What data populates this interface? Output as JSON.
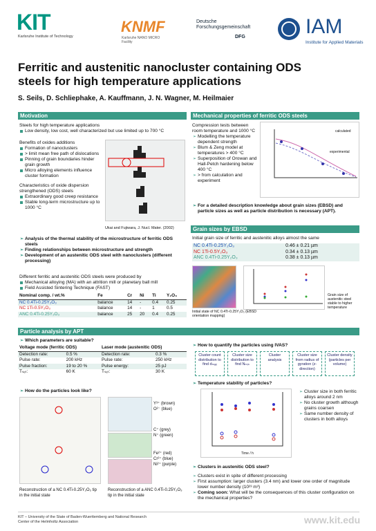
{
  "header": {
    "kit": "KIT",
    "kit_sub": "Karlsruhe Institute of Technology",
    "knmf": "KNMF",
    "knmf_sub": "Karlsruhe NANO MICRO Facility",
    "dfg": "Deutsche Forschungsgemeinschaft",
    "dfg_abbr": "DFG",
    "iam": "IAM",
    "iam_sub": "Institute for Applied Materials"
  },
  "title": "Ferritic and austenitic nanocluster containing ODS steels for high temperature applications",
  "authors": "S. Seils, D. Schliephake, A. Kauffmann, J. N. Wagner, M. Heilmaier",
  "motivation": {
    "heading": "Motivation",
    "intro": "Steels for high temperature applications",
    "intro_items": [
      "Low density, low cost, well characterized but use limited up to 700 °C"
    ],
    "benefits": "Benefits of oxides additions",
    "benefit_items": [
      "Formation of nanoclusters",
      "> limit mean free path of dislocations",
      "Pinning of grain boundaries hinder grain growth",
      "Micro alloying elements influence cluster formation"
    ],
    "character": "Characteristics of oxide dispersion strengthened (ODS) steels",
    "character_items": [
      "Extraordinary good creep resistance",
      "Stable long-term microstructure up to 1000 °C"
    ],
    "figure_caption": "Ukai and Fujiwara, J. Nucl. Mater. (2002)",
    "aims": [
      "Analysis of the thermal stability of the microstructure of ferritic ODS steels",
      "Finding relationships between microstructure and strength",
      "Development of an austenitic ODS steel with nanoclusters (different processing)"
    ],
    "produced": "Different ferritic and austenitic ODS steels were produced by",
    "produced_items": [
      "Mechanical alloying (MA) with an attrition mill or planetary ball mill",
      "Field Assisted Sintering Technique (FAST)"
    ],
    "table": {
      "header": [
        "Nominal comp. / wt.%",
        "Fe",
        "Cr",
        "Ni",
        "Ti",
        "Y₂O₃"
      ],
      "rows": [
        [
          "NC 0.4Ti-0.25Y₂O₃",
          "balance",
          "14",
          "-",
          "0.4",
          "0.25"
        ],
        [
          "NC 1Ti-0.5Y₂O₃",
          "balance",
          "14",
          "-",
          "1",
          "0.5"
        ],
        [
          "ANC 0.4Ti-0.25Y₂O₃",
          "balance",
          "25",
          "20",
          "0.4",
          "0.25"
        ]
      ]
    }
  },
  "mechanical": {
    "heading": "Mechanical properties of ferritic ODS steels",
    "intro": "Compression tests between room temperature and 1000 °C",
    "items": [
      "Modelling the temperature dependent strength",
      "Blum & Zeng model at temperatures > 400 °C",
      "Superposition of Orowan and Hall-Petch hardening below 400 °C",
      "> from calculation and experiment"
    ],
    "plot_labels": [
      "calculated",
      "experimental"
    ],
    "note": "For a detailed description knowledge about grain sizes (EBSD) and particle sizes as well as particle distribution is necessary (APT)."
  },
  "grain": {
    "heading": "Grain sizes by EBSD",
    "intro": "Initial grain size of ferritic and austenitic alloys almost the same",
    "rows": [
      [
        "NC 0.4Ti-0.25Y₂O₃",
        "0.46 ± 0.21 µm"
      ],
      [
        "NC 1Ti-0.5Y₂O₃",
        "0.34 ± 0.13 µm"
      ],
      [
        "ANC 0.4Ti-0.25Y₂O₃",
        "0.38 ± 0.13 µm"
      ]
    ],
    "map_caption": "Initial state of NC 0.4Ti-0.25Y₂O₃ (EBSD orientation mapping)",
    "plot_caption": "Grain size of austenitic steel stable to higher temperature"
  },
  "apt": {
    "heading": "Particle analysis by APT",
    "params_q": "Which parameters are suitable?",
    "params": {
      "header": [
        "Voltage mode (ferritic ODS)",
        "Laser mode (austenitic ODS)"
      ],
      "rows": [
        [
          "Detection rate:",
          "0.5 %",
          "Detection rate:",
          "0.3 %"
        ],
        [
          "Pulse rate:",
          "200 kHz",
          "Pulse rate:",
          "250 kHz"
        ],
        [
          "Pulse fraction:",
          "19 to 20 %",
          "Pulse energy:",
          "25 pJ"
        ],
        [
          "Tₛₑₜ:",
          "60 K",
          "Tₛₑₜ:",
          "30 K"
        ]
      ]
    },
    "look_q": "How do the particles look like?",
    "legend": [
      "Y³⁺ (brown)",
      "O²⁻ (blue)",
      "C⁺ (grey)",
      "N⁺ (green)",
      "Fe²⁺ (red)",
      "Cr²⁺ (blue)",
      "Ni²⁺ (purple)"
    ],
    "cap_left": "Reconstruction of a NC 0.4Ti-0.25Y₂O₃ tip in the initial state",
    "cap_right": "Reconstruction of a ANC 0.4Ti-0.25Y₂O₃ tip in the initial state",
    "ivas_q": "How to quantify the particles using IVAS?",
    "flow": [
      "Cluster count distribution to find dₘₐₓ",
      "Cluster size distribution to find Nₘᵢₙ",
      "Cluster analysis",
      "Cluster size from radius of gyration (z-direction)",
      "Cluster density (particles per volume)"
    ],
    "temp_q": "Temperature stability of particles?",
    "plot_x": "Time / h",
    "temp_items": [
      "Cluster size in both ferritic alloys around 2 nm",
      "No cluster growth although grains coarsen",
      "Same number density of clusters in both alloys"
    ],
    "aust_q": "Clusters in austenitic ODS steel?",
    "aust_items": [
      "Clusters exist in spite of different processing",
      "First assumption: larger clusters (3.4 nm) and lower one order of magnitude lower number density (10²³ m³)"
    ],
    "coming_bold": "Coming soon:",
    "coming": "What will be the consequences of this cluster configuration on the mechanical properties?"
  },
  "footer": {
    "text": "KIT – University of the State of Baden-Wuerttemberg and National Research Center of the Helmholtz Association",
    "url": "www.kit.edu"
  }
}
